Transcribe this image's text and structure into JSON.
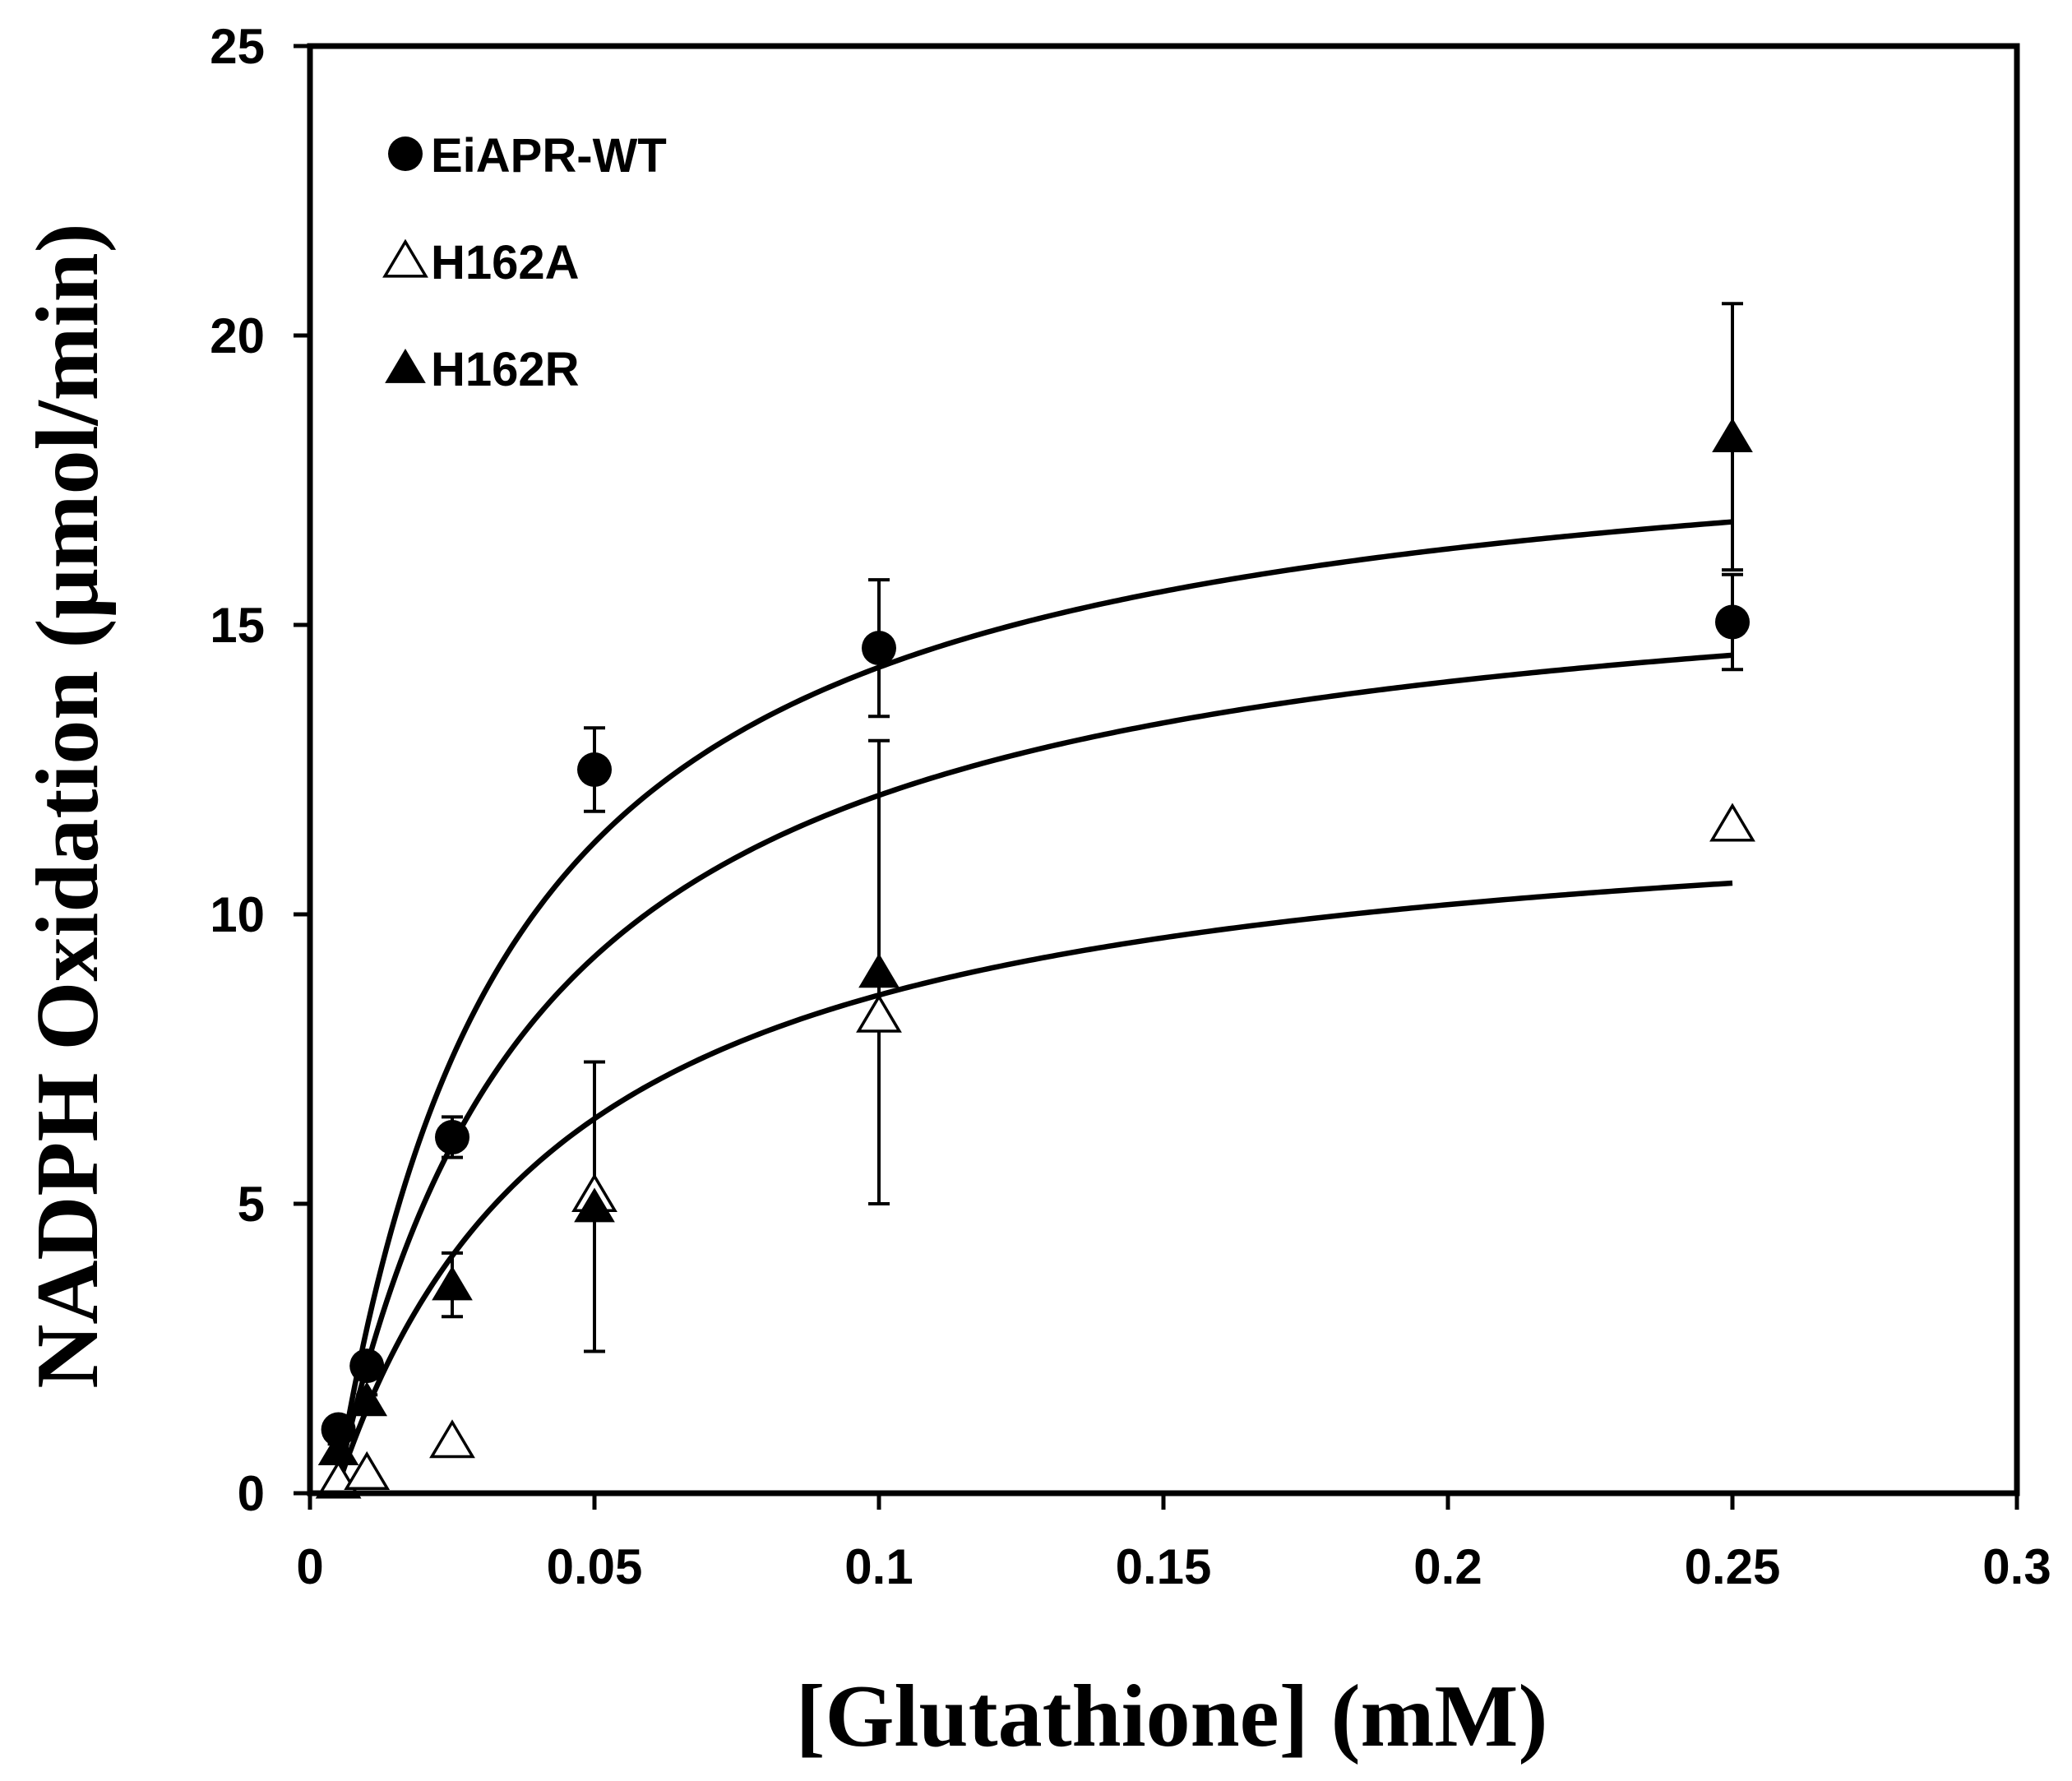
{
  "chart_data": {
    "type": "scatter",
    "title": "",
    "xlabel": "[Glutathione] (mM)",
    "ylabel": "NADPH Oxidation (μmol/min)",
    "xlim": [
      0,
      0.3
    ],
    "ylim": [
      0,
      25
    ],
    "xticks": [
      0,
      0.05,
      0.1,
      0.15,
      0.2,
      0.25,
      0.3
    ],
    "xtick_labels": [
      "0",
      "0.05",
      "0.1",
      "0.15",
      "0.2",
      "0.25",
      "0.3"
    ],
    "yticks": [
      0,
      5,
      10,
      15,
      20,
      25
    ],
    "ytick_labels": [
      "0",
      "5",
      "10",
      "15",
      "20",
      "25"
    ],
    "grid": false,
    "legend_position": "top-left",
    "series": [
      {
        "name": "EiAPR-WT",
        "marker": "filled-circle",
        "color": "#000000",
        "x": [
          0.005,
          0.01,
          0.025,
          0.05,
          0.1,
          0.25
        ],
        "y": [
          1.1,
          2.2,
          6.15,
          12.5,
          14.6,
          15.05
        ],
        "err": [
          0.1,
          0.1,
          0.35,
          0.72,
          1.18,
          0.82
        ]
      },
      {
        "name": "H162A",
        "marker": "open-triangle",
        "color": "#000000",
        "x": [
          0.005,
          0.01,
          0.025,
          0.05,
          0.1,
          0.25
        ],
        "y": [
          0.2,
          0.35,
          0.9,
          5.15,
          8.25,
          11.55
        ],
        "err": [
          0,
          0,
          0,
          0,
          0,
          0
        ]
      },
      {
        "name": "H162R",
        "marker": "filled-triangle",
        "color": "#000000",
        "x": [
          0.005,
          0.01,
          0.025,
          0.05,
          0.1,
          0.25
        ],
        "y": [
          0.75,
          1.6,
          3.6,
          4.95,
          9.0,
          18.25
        ],
        "err": [
          0.1,
          0.1,
          0.55,
          2.5,
          4.0,
          2.3
        ]
      }
    ],
    "fit_curves": [
      {
        "name": "fit-upper",
        "vmax": 18.9,
        "km": 0.031,
        "x0": 0.0045,
        "x1": 0.25
      },
      {
        "name": "fit-middle",
        "vmax": 16.6,
        "km": 0.036,
        "x0": 0.0045,
        "x1": 0.25
      },
      {
        "name": "fit-lower",
        "vmax": 12.3,
        "km": 0.041,
        "x0": 0.0045,
        "x1": 0.25
      }
    ]
  }
}
